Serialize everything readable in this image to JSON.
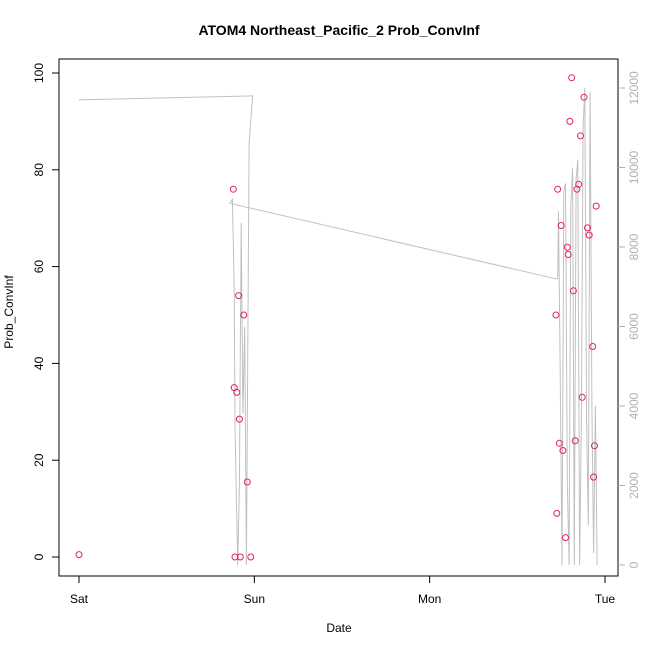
{
  "chart_data": {
    "type": "scatter",
    "title": "ATOM4 Northeast_Pacific_2 Prob_ConvInf",
    "xlabel": "Date",
    "ylabel": "Prob_ConvInf",
    "ylim": [
      0,
      100
    ],
    "x_ticks": [
      {
        "day": 0,
        "label": "Sat"
      },
      {
        "day": 1,
        "label": "Sun"
      },
      {
        "day": 2,
        "label": "Mon"
      },
      {
        "day": 3,
        "label": "Tue"
      }
    ],
    "y_ticks": [
      0,
      20,
      40,
      60,
      80,
      100
    ],
    "y2_ticks": [
      0,
      2000,
      4000,
      6000,
      8000,
      10000,
      12000
    ],
    "y2lim": [
      0,
      12000
    ],
    "grid": false,
    "line_color": "#c0c0c0",
    "point_color": "#e0206a",
    "points": [
      {
        "day": 0.0,
        "y": 0.5
      },
      {
        "day": 0.88,
        "y": 76
      },
      {
        "day": 0.885,
        "y": 35
      },
      {
        "day": 0.89,
        "y": 0
      },
      {
        "day": 0.9,
        "y": 34
      },
      {
        "day": 0.91,
        "y": 54
      },
      {
        "day": 0.915,
        "y": 28.5
      },
      {
        "day": 0.92,
        "y": 0
      },
      {
        "day": 0.94,
        "y": 50
      },
      {
        "day": 0.96,
        "y": 15.5
      },
      {
        "day": 0.98,
        "y": 0
      },
      {
        "day": 2.72,
        "y": 50
      },
      {
        "day": 2.725,
        "y": 9
      },
      {
        "day": 2.73,
        "y": 76
      },
      {
        "day": 2.74,
        "y": 23.5
      },
      {
        "day": 2.75,
        "y": 68.5
      },
      {
        "day": 2.76,
        "y": 22
      },
      {
        "day": 2.775,
        "y": 4
      },
      {
        "day": 2.785,
        "y": 64
      },
      {
        "day": 2.79,
        "y": 62.5
      },
      {
        "day": 2.8,
        "y": 90
      },
      {
        "day": 2.81,
        "y": 99
      },
      {
        "day": 2.82,
        "y": 55
      },
      {
        "day": 2.83,
        "y": 24
      },
      {
        "day": 2.84,
        "y": 76
      },
      {
        "day": 2.85,
        "y": 77
      },
      {
        "day": 2.86,
        "y": 87
      },
      {
        "day": 2.87,
        "y": 33
      },
      {
        "day": 2.88,
        "y": 95
      },
      {
        "day": 2.9,
        "y": 68
      },
      {
        "day": 2.91,
        "y": 66.5
      },
      {
        "day": 2.93,
        "y": 43.5
      },
      {
        "day": 2.935,
        "y": 16.5
      },
      {
        "day": 2.94,
        "y": 23
      },
      {
        "day": 2.95,
        "y": 72.5
      }
    ],
    "line_series": [
      {
        "day": 0.0,
        "y": 11700
      },
      {
        "day": 0.99,
        "y": 11800
      },
      {
        "day": 0.97,
        "y": 10600
      },
      {
        "day": 0.955,
        "y": 0
      },
      {
        "day": 0.945,
        "y": 6000
      },
      {
        "day": 0.935,
        "y": 3800
      },
      {
        "day": 0.925,
        "y": 8600
      },
      {
        "day": 0.915,
        "y": 2000
      },
      {
        "day": 0.905,
        "y": 0
      },
      {
        "day": 0.89,
        "y": 3500
      },
      {
        "day": 0.885,
        "y": 7000
      },
      {
        "day": 0.875,
        "y": 9200
      },
      {
        "day": 0.86,
        "y": 9100
      },
      {
        "day": 2.72,
        "y": 7200
      },
      {
        "day": 2.73,
        "y": 7200
      },
      {
        "day": 2.735,
        "y": 8900
      },
      {
        "day": 2.745,
        "y": 4600
      },
      {
        "day": 2.755,
        "y": 0
      },
      {
        "day": 2.765,
        "y": 9400
      },
      {
        "day": 2.775,
        "y": 9600
      },
      {
        "day": 2.785,
        "y": 2100
      },
      {
        "day": 2.795,
        "y": 0
      },
      {
        "day": 2.805,
        "y": 9000
      },
      {
        "day": 2.815,
        "y": 10000
      },
      {
        "day": 2.825,
        "y": 0
      },
      {
        "day": 2.835,
        "y": 9700
      },
      {
        "day": 2.845,
        "y": 10200
      },
      {
        "day": 2.855,
        "y": 0
      },
      {
        "day": 2.865,
        "y": 3500
      },
      {
        "day": 2.875,
        "y": 11000
      },
      {
        "day": 2.885,
        "y": 12000
      },
      {
        "day": 2.895,
        "y": 3600
      },
      {
        "day": 2.905,
        "y": 1000
      },
      {
        "day": 2.915,
        "y": 11900
      },
      {
        "day": 2.925,
        "y": 4000
      },
      {
        "day": 2.935,
        "y": 300
      },
      {
        "day": 2.945,
        "y": 4000
      },
      {
        "day": 2.955,
        "y": 0
      }
    ]
  }
}
